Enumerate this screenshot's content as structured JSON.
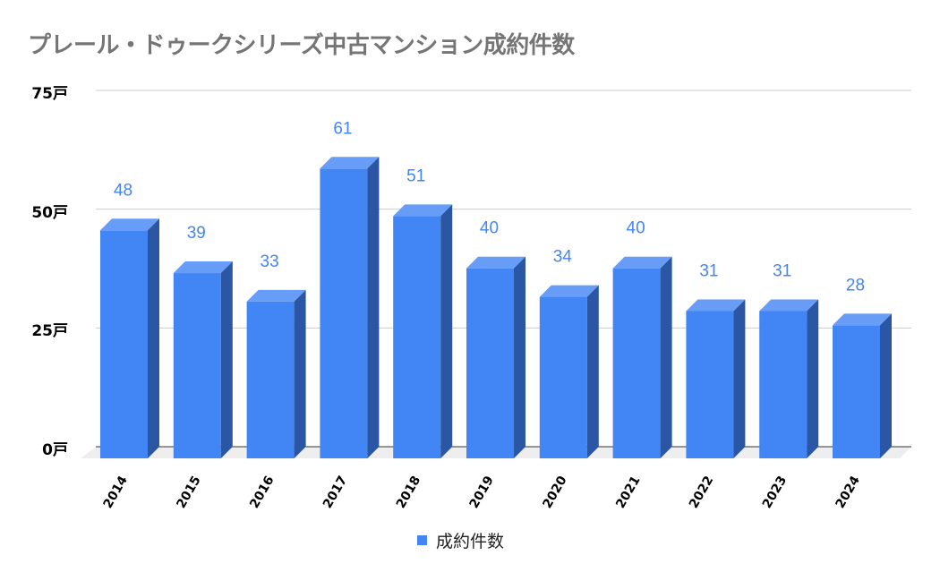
{
  "title": "プレール・ドゥークシリーズ中古マンション成約件数",
  "legend": {
    "label": "成約件数",
    "color": "#4285f4"
  },
  "y_axis": {
    "ticks": [
      "0戸",
      "25戸",
      "50戸",
      "75戸"
    ]
  },
  "colors": {
    "front": "#4285f4",
    "top": "#679df6",
    "side": "#2a56a3",
    "label": "#4285f4",
    "grid": "#cccccc",
    "floor": "#eeeeee"
  },
  "chart_data": {
    "type": "bar",
    "title": "プレール・ドゥークシリーズ中古マンション成約件数",
    "categories": [
      "2014",
      "2015",
      "2016",
      "2017",
      "2018",
      "2019",
      "2020",
      "2021",
      "2022",
      "2023",
      "2024"
    ],
    "series": [
      {
        "name": "成約件数",
        "values": [
          48,
          39,
          33,
          61,
          51,
          40,
          34,
          40,
          31,
          31,
          28
        ]
      }
    ],
    "xlabel": "",
    "ylabel": "",
    "ylim": [
      0,
      75
    ],
    "yticks": [
      0,
      25,
      50,
      75
    ],
    "ytick_suffix": "戸",
    "grid": true,
    "legend_position": "bottom",
    "style": "3d-bar",
    "data_labels": true
  }
}
